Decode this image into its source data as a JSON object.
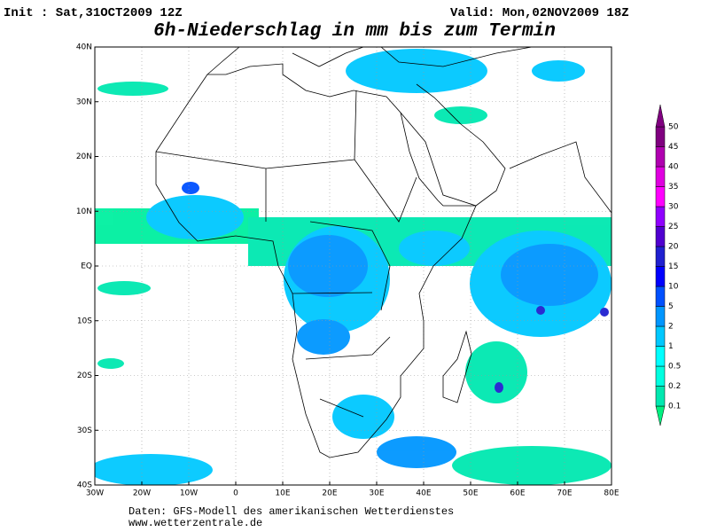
{
  "header": {
    "init": "Init : Sat,31OCT2009 12Z",
    "valid": "Valid: Mon,02NOV2009 18Z",
    "title": "6h-Niederschlag in mm bis zum Termin"
  },
  "map": {
    "lonlim": [
      -30,
      80
    ],
    "latlim": [
      -40,
      40
    ],
    "grid": true,
    "lonticks": [
      {
        "value": -30,
        "label": "30W"
      },
      {
        "value": -20,
        "label": "20W"
      },
      {
        "value": -10,
        "label": "10W"
      },
      0,
      {
        "value": 10,
        "label": "10E"
      },
      {
        "value": 20,
        "label": "20E"
      },
      {
        "value": 30,
        "label": "30E"
      },
      {
        "value": 40,
        "label": "40E"
      },
      {
        "value": 50,
        "label": "50E"
      },
      {
        "value": 60,
        "label": "60E"
      },
      {
        "value": 70,
        "label": "70E"
      },
      {
        "value": 80,
        "label": "80E"
      }
    ],
    "latticks": [
      {
        "value": 40,
        "label": "40N"
      },
      {
        "value": 30,
        "label": "30N"
      },
      {
        "value": 20,
        "label": "20N"
      },
      {
        "value": 10,
        "label": "10N"
      },
      {
        "value": 0,
        "label": "EQ"
      },
      {
        "value": -10,
        "label": "10S"
      },
      {
        "value": -20,
        "label": "20S"
      },
      {
        "value": -30,
        "label": "30S"
      },
      {
        "value": -40,
        "label": "40S"
      }
    ]
  },
  "colorbar": {
    "levels": [
      0.1,
      0.2,
      0.5,
      1,
      2,
      5,
      10,
      15,
      20,
      25,
      30,
      35,
      40,
      45,
      50
    ],
    "colors": [
      "#00f080",
      "#00e8b0",
      "#00ffe0",
      "#00ffff",
      "#00c8ff",
      "#0096ff",
      "#0050ff",
      "#0000ff",
      "#2020d0",
      "#5000d0",
      "#9000ff",
      "#ff00ff",
      "#e000e0",
      "#b000b0",
      "#800080"
    ]
  },
  "footer": {
    "source": "Daten: GFS-Modell des amerikanischen Wetterdienstes",
    "url": "www.wetterzentrale.de"
  }
}
